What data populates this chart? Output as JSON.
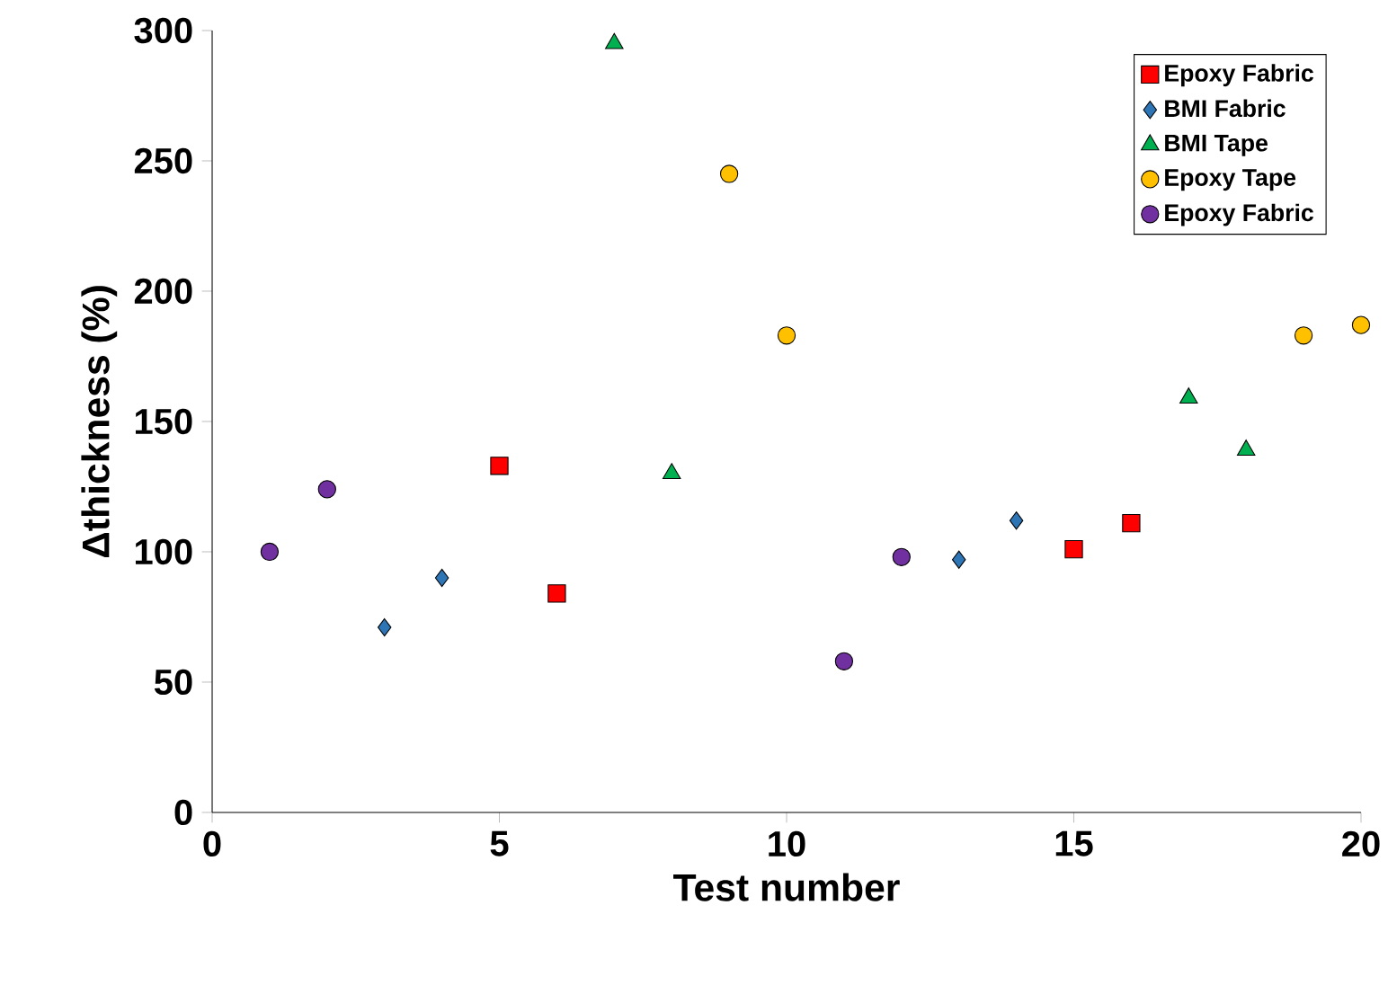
{
  "chart_data": {
    "type": "scatter",
    "xlabel": "Test number",
    "ylabel": "Δthickness (%)",
    "xlim": [
      0,
      20
    ],
    "xticks": [
      0,
      5,
      10,
      15,
      20
    ],
    "ylim": [
      0,
      300
    ],
    "yticks": [
      0,
      50,
      100,
      150,
      200,
      250,
      300
    ],
    "grid": false,
    "legend": "top right",
    "series": [
      {
        "name": "Epoxy Fabric",
        "color": "#ff0000",
        "marker": "square",
        "x": [
          5,
          6,
          15,
          16
        ],
        "values": [
          133,
          84,
          101,
          111
        ]
      },
      {
        "name": "BMI Fabric",
        "color": "#2e75b6",
        "marker": "diamond",
        "x": [
          3,
          4,
          13,
          14
        ],
        "values": [
          71,
          90,
          97,
          112
        ]
      },
      {
        "name": "BMI Tape",
        "color": "#00b050",
        "marker": "triangle",
        "x": [
          7,
          8,
          17,
          18
        ],
        "values": [
          295,
          130,
          159,
          139
        ]
      },
      {
        "name": "Epoxy Tape",
        "color": "#ffc000",
        "marker": "circle",
        "x": [
          9,
          10,
          19,
          20
        ],
        "values": [
          245,
          183,
          183,
          187
        ]
      },
      {
        "name": "Epoxy Fabric",
        "color": "#7030a0",
        "marker": "circle",
        "x": [
          1,
          2,
          11,
          12
        ],
        "values": [
          100,
          124,
          58,
          98
        ]
      }
    ]
  }
}
